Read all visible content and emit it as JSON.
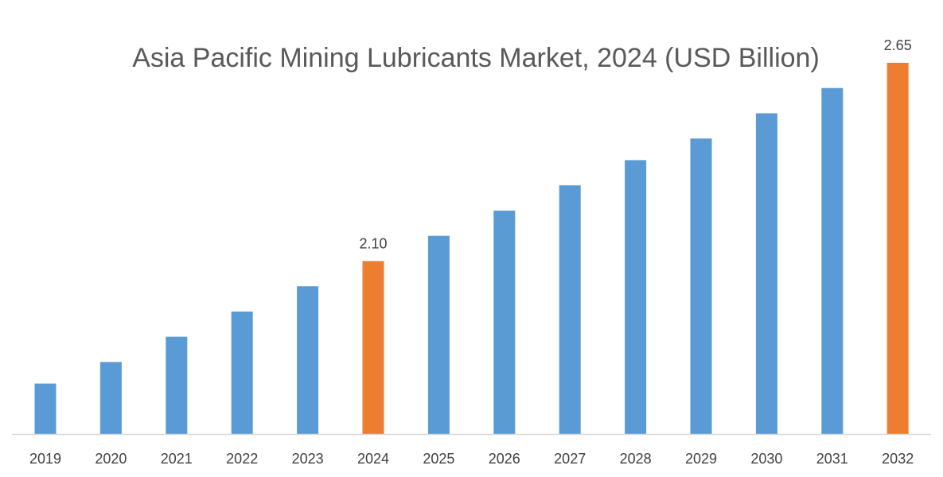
{
  "chart_data": {
    "type": "bar",
    "title": "Asia Pacific Mining Lubricants Market, 2024 (USD Billion)",
    "xlabel": "",
    "ylabel": "",
    "categories": [
      "2019",
      "2020",
      "2021",
      "2022",
      "2023",
      "2024",
      "2025",
      "2026",
      "2027",
      "2028",
      "2029",
      "2030",
      "2031",
      "2032"
    ],
    "values": [
      1.76,
      1.82,
      1.89,
      1.96,
      2.03,
      2.1,
      2.17,
      2.24,
      2.31,
      2.38,
      2.44,
      2.51,
      2.58,
      2.65
    ],
    "data_labels": {
      "2024": "2.10",
      "2032": "2.65"
    },
    "highlight_categories": [
      "2024",
      "2032"
    ],
    "ylim": [
      1.62,
      2.65
    ],
    "grid": false,
    "legend": "none",
    "colors": {
      "bar": "#5b9bd5",
      "highlight": "#ed7d31",
      "axis": "#d9d9d9"
    }
  }
}
